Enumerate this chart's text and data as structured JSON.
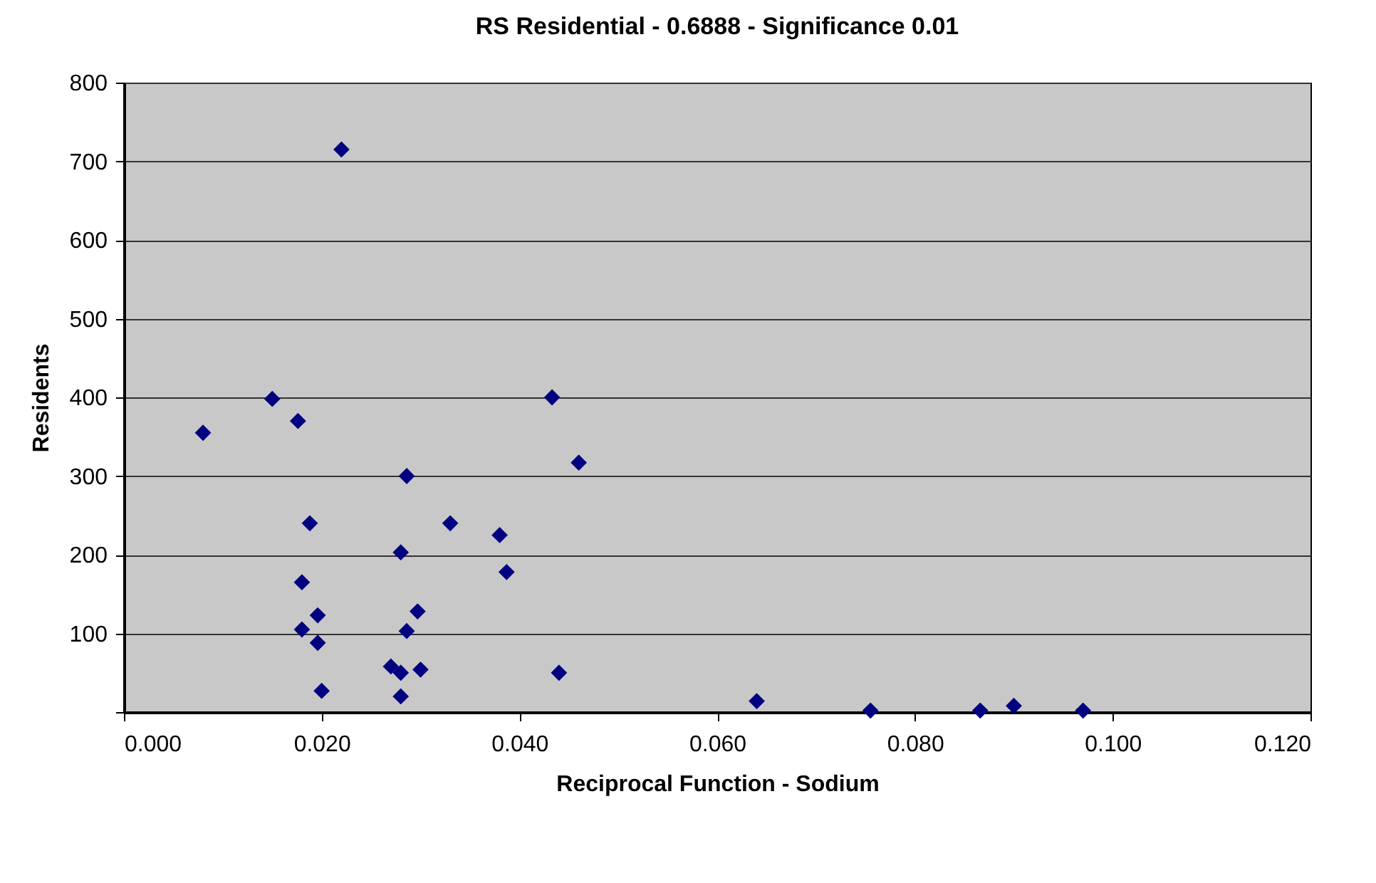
{
  "chart_data": {
    "type": "scatter",
    "title": "RS Residential - 0.6888 - Significance 0.01",
    "xlabel": "Reciprocal Function - Sodium",
    "ylabel": "Residents",
    "x": [
      0.008,
      0.015,
      0.0176,
      0.0188,
      0.018,
      0.018,
      0.0196,
      0.0196,
      0.02,
      0.022,
      0.0286,
      0.028,
      0.0286,
      0.0297,
      0.027,
      0.028,
      0.028,
      0.03,
      0.033,
      0.038,
      0.0387,
      0.0433,
      0.046,
      0.044,
      0.064,
      0.0755,
      0.0866,
      0.09,
      0.097
    ],
    "series": [
      {
        "color": "#000080",
        "values": [
          355,
          398,
          370,
          240,
          165,
          105,
          123,
          88,
          27,
          715,
          300,
          203,
          103,
          128,
          58,
          50,
          20,
          54,
          240,
          225,
          178,
          400,
          317,
          50,
          14,
          2,
          2,
          8,
          2
        ]
      }
    ],
    "xlim": [
      0,
      0.12
    ],
    "xticks": [
      {
        "value": 0,
        "label": "0.000"
      },
      {
        "value": 0.02,
        "label": "0.020"
      },
      {
        "value": 0.04,
        "label": "0.040"
      },
      {
        "value": 0.06,
        "label": "0.060"
      },
      {
        "value": 0.08,
        "label": "0.080"
      },
      {
        "value": 0.1,
        "label": "0.100"
      },
      {
        "value": 0.12,
        "label": "0.120"
      }
    ],
    "ylim": [
      0,
      800
    ],
    "yticks": [
      {
        "value": 0,
        "label": null
      },
      100,
      200,
      300,
      400,
      500,
      600,
      700,
      800
    ],
    "grid": "y",
    "marker": "diamond",
    "legend": false
  }
}
